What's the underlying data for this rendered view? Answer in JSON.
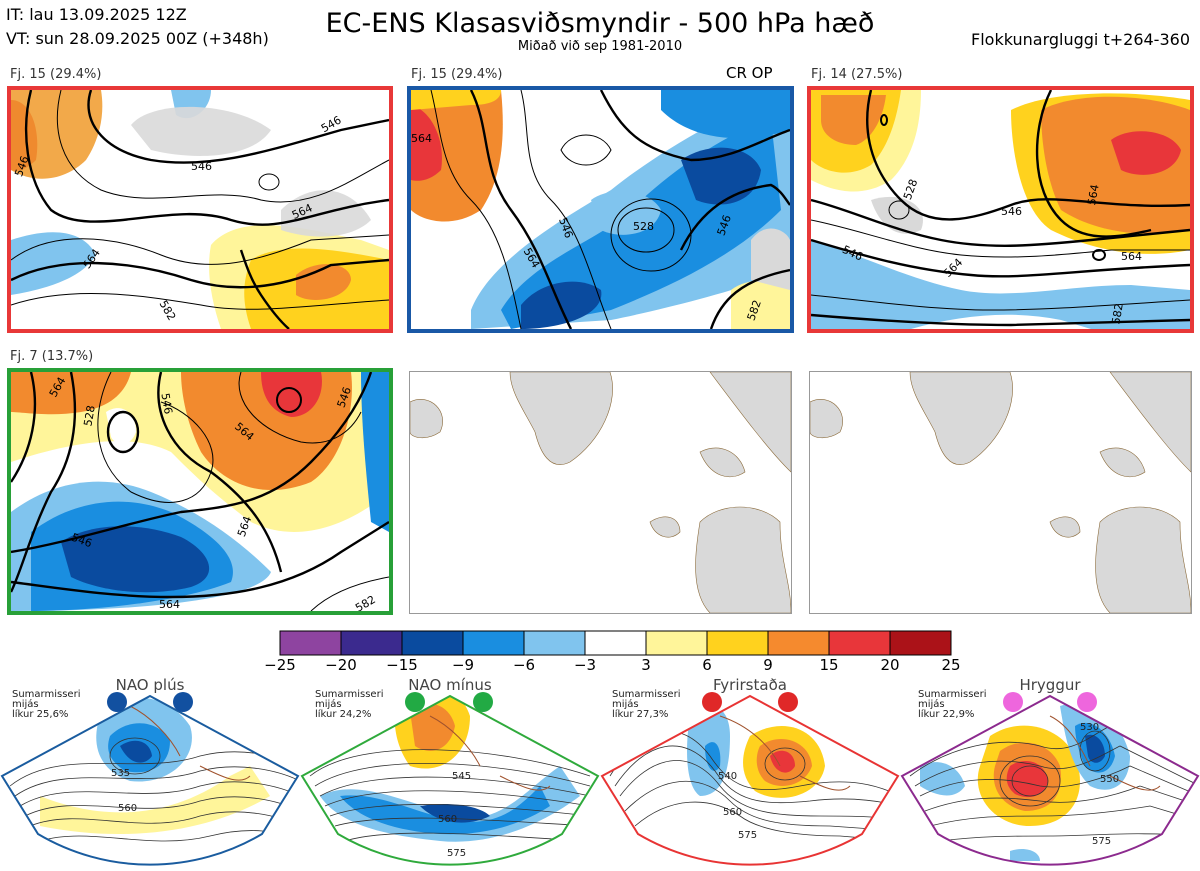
{
  "header": {
    "it": "IT: lau 13.09.2025 12Z",
    "vt": "VT: sun 28.09.2025 00Z  (+348h)",
    "title": "EC-ENS Klasasviðsmyndir - 500 hPa hæð",
    "subtitle": "Miðað við sep 1981-2010",
    "window": "Flokkunargluggi t+264-360"
  },
  "panels": [
    {
      "label": "Fj. 15 (29.4%)",
      "tag": "",
      "contours": [
        "546",
        "546",
        "546",
        "564",
        "564",
        "582"
      ]
    },
    {
      "label": "Fj. 15 (29.4%)",
      "tag": "CR OP",
      "contours": [
        "564",
        "546",
        "528",
        "546",
        "564",
        "582"
      ]
    },
    {
      "label": "Fj. 14 (27.5%)",
      "tag": "",
      "contours": [
        "528",
        "546",
        "546",
        "564",
        "564",
        "564",
        "582"
      ]
    },
    {
      "label": "Fj. 7 (13.7%)",
      "tag": "",
      "contours": [
        "564",
        "528",
        "546",
        "564",
        "546",
        "546",
        "564",
        "564",
        "582"
      ]
    }
  ],
  "colorbar": {
    "ticks": [
      "−25",
      "−20",
      "−15",
      "−9",
      "−6",
      "−3",
      "3",
      "6",
      "9",
      "15",
      "20",
      "25"
    ],
    "colors": [
      "#8e44a0",
      "#3b2a8e",
      "#0a4b9f",
      "#1a8ee0",
      "#80c4ee",
      "#ffffff",
      "#fff59a",
      "#ffd21e",
      "#f58a2e",
      "#e8363a",
      "#ab1218"
    ]
  },
  "regimes": [
    {
      "title": "NAO plús",
      "season": "Sumarmisseri",
      "area": "mijás",
      "prob": "líkur 25,6%",
      "color": "#1a5c9f",
      "dot": "#1250a0",
      "contours": [
        "535",
        "560"
      ]
    },
    {
      "title": "NAO mínus",
      "season": "Sumarmisseri",
      "area": "mijás",
      "prob": "líkur 24,2%",
      "color": "#2faa3c",
      "dot": "#22aa44",
      "contours": [
        "545",
        "560",
        "575"
      ]
    },
    {
      "title": "Fyrirstaða",
      "season": "Sumarmisseri",
      "area": "mijás",
      "prob": "líkur 27,3%",
      "color": "#e83434",
      "dot": "#e02828",
      "contours": [
        "540",
        "560",
        "575"
      ]
    },
    {
      "title": "Hryggur",
      "season": "Sumarmisseri",
      "area": "mijás",
      "prob": "líkur 22,9%",
      "color": "#8c2a8e",
      "dot": "#ee66dd",
      "contours": [
        "530",
        "550",
        "575"
      ]
    }
  ]
}
